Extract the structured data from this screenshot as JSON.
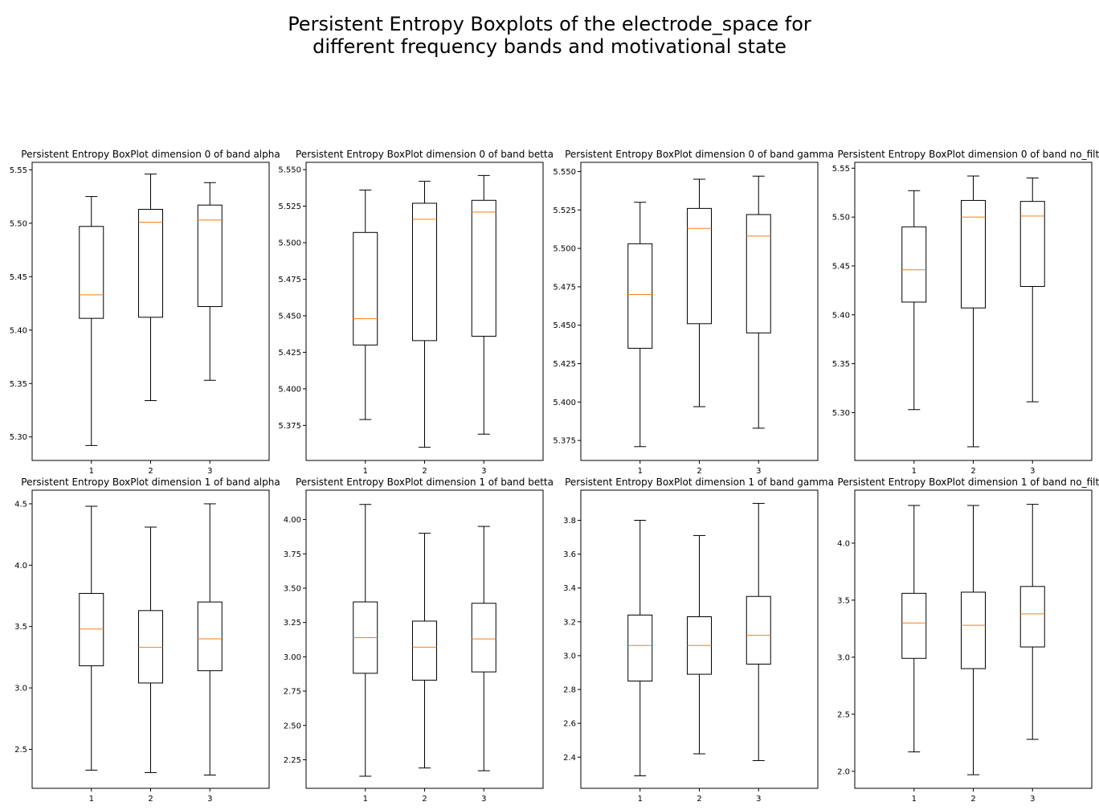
{
  "suptitle": {
    "line1": "Persistent Entropy Boxplots of the electrode_space for",
    "line2": "different frequency bands and motivational state"
  },
  "chart_data": [
    {
      "type": "boxplot",
      "title": "Persistent Entropy BoxPlot dimension 0 of band alpha",
      "categories": [
        "1",
        "2",
        "3"
      ],
      "ylim": [
        5.278,
        5.557
      ],
      "yticks": [
        5.3,
        5.35,
        5.4,
        5.45,
        5.5,
        5.55
      ],
      "ytick_labels": [
        "5.30",
        "5.35",
        "5.40",
        "5.45",
        "5.50",
        "5.55"
      ],
      "boxes": [
        {
          "whislo": 5.292,
          "q1": 5.411,
          "med": 5.433,
          "q3": 5.497,
          "whishi": 5.525
        },
        {
          "whislo": 5.334,
          "q1": 5.412,
          "med": 5.501,
          "q3": 5.513,
          "whishi": 5.546
        },
        {
          "whislo": 5.353,
          "q1": 5.422,
          "med": 5.503,
          "q3": 5.517,
          "whishi": 5.538
        }
      ]
    },
    {
      "type": "boxplot",
      "title": "Persistent Entropy BoxPlot dimension 0 of band betta",
      "categories": [
        "1",
        "2",
        "3"
      ],
      "ylim": [
        5.351,
        5.555
      ],
      "yticks": [
        5.375,
        5.4,
        5.425,
        5.45,
        5.475,
        5.5,
        5.525,
        5.55
      ],
      "ytick_labels": [
        "5.375",
        "5.400",
        "5.425",
        "5.450",
        "5.475",
        "5.500",
        "5.525",
        "5.550"
      ],
      "boxes": [
        {
          "whislo": 5.379,
          "q1": 5.43,
          "med": 5.448,
          "q3": 5.507,
          "whishi": 5.536
        },
        {
          "whislo": 5.36,
          "q1": 5.433,
          "med": 5.516,
          "q3": 5.527,
          "whishi": 5.542
        },
        {
          "whislo": 5.369,
          "q1": 5.436,
          "med": 5.521,
          "q3": 5.529,
          "whishi": 5.546
        }
      ]
    },
    {
      "type": "boxplot",
      "title": "Persistent Entropy BoxPlot dimension 0 of band gamma",
      "categories": [
        "1",
        "2",
        "3"
      ],
      "ylim": [
        5.362,
        5.556
      ],
      "yticks": [
        5.375,
        5.4,
        5.425,
        5.45,
        5.475,
        5.5,
        5.525,
        5.55
      ],
      "ytick_labels": [
        "5.375",
        "5.400",
        "5.425",
        "5.450",
        "5.475",
        "5.500",
        "5.525",
        "5.550"
      ],
      "boxes": [
        {
          "whislo": 5.371,
          "q1": 5.435,
          "med": 5.47,
          "q3": 5.503,
          "whishi": 5.53
        },
        {
          "whislo": 5.397,
          "q1": 5.451,
          "med": 5.513,
          "q3": 5.526,
          "whishi": 5.545
        },
        {
          "whislo": 5.383,
          "q1": 5.445,
          "med": 5.508,
          "q3": 5.522,
          "whishi": 5.547
        }
      ]
    },
    {
      "type": "boxplot",
      "title": "Persistent Entropy BoxPlot dimension 0 of band no_filter",
      "categories": [
        "1",
        "2",
        "3"
      ],
      "ylim": [
        5.251,
        5.556
      ],
      "yticks": [
        5.3,
        5.35,
        5.4,
        5.45,
        5.5,
        5.55
      ],
      "ytick_labels": [
        "5.30",
        "5.35",
        "5.40",
        "5.45",
        "5.50",
        "5.55"
      ],
      "boxes": [
        {
          "whislo": 5.303,
          "q1": 5.413,
          "med": 5.446,
          "q3": 5.49,
          "whishi": 5.527
        },
        {
          "whislo": 5.265,
          "q1": 5.407,
          "med": 5.5,
          "q3": 5.517,
          "whishi": 5.542
        },
        {
          "whislo": 5.311,
          "q1": 5.429,
          "med": 5.501,
          "q3": 5.516,
          "whishi": 5.54
        }
      ]
    },
    {
      "type": "boxplot",
      "title": "Persistent Entropy BoxPlot dimension 1 of band alpha",
      "categories": [
        "1",
        "2",
        "3"
      ],
      "ylim": [
        2.182,
        4.611
      ],
      "yticks": [
        2.5,
        3.0,
        3.5,
        4.0,
        4.5
      ],
      "ytick_labels": [
        "2.5",
        "3.0",
        "3.5",
        "4.0",
        "4.5"
      ],
      "boxes": [
        {
          "whislo": 2.33,
          "q1": 3.18,
          "med": 3.48,
          "q3": 3.77,
          "whishi": 4.48
        },
        {
          "whislo": 2.31,
          "q1": 3.04,
          "med": 3.33,
          "q3": 3.63,
          "whishi": 4.31
        },
        {
          "whislo": 2.29,
          "q1": 3.14,
          "med": 3.4,
          "q3": 3.7,
          "whishi": 4.5
        }
      ]
    },
    {
      "type": "boxplot",
      "title": "Persistent Entropy BoxPlot dimension 1 of band betta",
      "categories": [
        "1",
        "2",
        "3"
      ],
      "ylim": [
        2.042,
        4.214
      ],
      "yticks": [
        2.25,
        2.5,
        2.75,
        3.0,
        3.25,
        3.5,
        3.75,
        4.0
      ],
      "ytick_labels": [
        "2.25",
        "2.50",
        "2.75",
        "3.00",
        "3.25",
        "3.50",
        "3.75",
        "4.00"
      ],
      "boxes": [
        {
          "whislo": 2.13,
          "q1": 2.88,
          "med": 3.14,
          "q3": 3.4,
          "whishi": 4.11
        },
        {
          "whislo": 2.19,
          "q1": 2.83,
          "med": 3.07,
          "q3": 3.26,
          "whishi": 3.9
        },
        {
          "whislo": 2.17,
          "q1": 2.89,
          "med": 3.13,
          "q3": 3.39,
          "whishi": 3.95
        }
      ]
    },
    {
      "type": "boxplot",
      "title": "Persistent Entropy BoxPlot dimension 1 of band gamma",
      "categories": [
        "1",
        "2",
        "3"
      ],
      "ylim": [
        2.216,
        3.978
      ],
      "yticks": [
        2.4,
        2.6,
        2.8,
        3.0,
        3.2,
        3.4,
        3.6,
        3.8
      ],
      "ytick_labels": [
        "2.4",
        "2.6",
        "2.8",
        "3.0",
        "3.2",
        "3.4",
        "3.6",
        "3.8"
      ],
      "boxes": [
        {
          "whislo": 2.29,
          "q1": 2.85,
          "med": 3.06,
          "q3": 3.24,
          "whishi": 3.8
        },
        {
          "whislo": 2.42,
          "q1": 2.89,
          "med": 3.06,
          "q3": 3.23,
          "whishi": 3.71
        },
        {
          "whislo": 2.38,
          "q1": 2.95,
          "med": 3.12,
          "q3": 3.35,
          "whishi": 3.9
        }
      ]
    },
    {
      "type": "boxplot",
      "title": "Persistent Entropy BoxPlot dimension 1 of band no_filter",
      "categories": [
        "1",
        "2",
        "3"
      ],
      "ylim": [
        1.851,
        4.464
      ],
      "yticks": [
        2.0,
        2.5,
        3.0,
        3.5,
        4.0
      ],
      "ytick_labels": [
        "2.0",
        "2.5",
        "3.0",
        "3.5",
        "4.0"
      ],
      "boxes": [
        {
          "whislo": 2.17,
          "q1": 2.99,
          "med": 3.3,
          "q3": 3.56,
          "whishi": 4.33
        },
        {
          "whislo": 1.97,
          "q1": 2.9,
          "med": 3.28,
          "q3": 3.57,
          "whishi": 4.33
        },
        {
          "whislo": 2.28,
          "q1": 3.09,
          "med": 3.38,
          "q3": 3.62,
          "whishi": 4.34
        }
      ]
    }
  ],
  "colors": {
    "box": "#000000",
    "median": "#ff7f0e"
  }
}
